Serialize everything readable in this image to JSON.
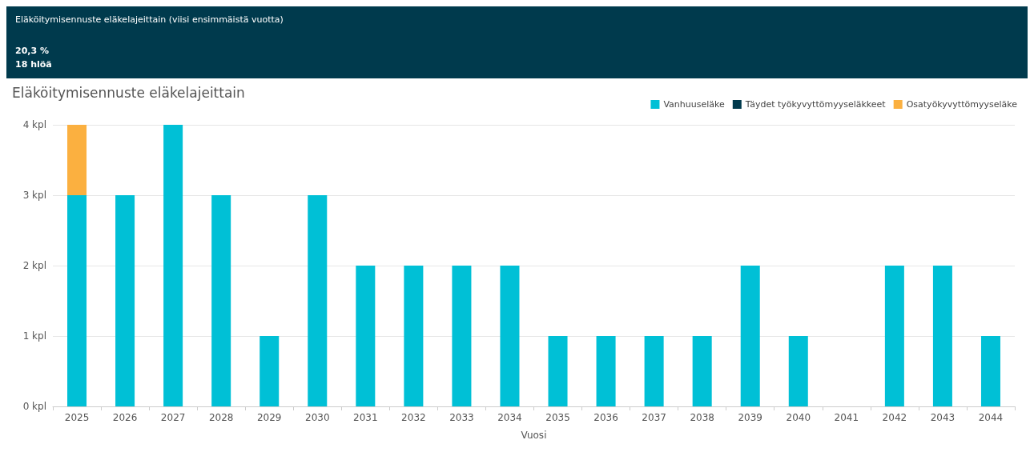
{
  "chart_data": [
    {
      "type": "other",
      "title": "Eläköitymisennuste eläkelajeittain (viisi ensimmäistä vuotta)",
      "annotations": [
        "20,3 %",
        "18 hlöä"
      ]
    },
    {
      "type": "bar",
      "title": "Eläköitymisennuste eläkelajeittain",
      "xlabel": "Vuosi",
      "stacked": true,
      "grid": "y",
      "legend": "top right",
      "categories": [
        "2025",
        "2026",
        "2027",
        "2028",
        "2029",
        "2030",
        "2031",
        "2032",
        "2033",
        "2034",
        "2035",
        "2036",
        "2037",
        "2038",
        "2039",
        "2040",
        "2041",
        "2042",
        "2043",
        "2044"
      ],
      "series": [
        {
          "name": "Vanhuuseläke",
          "color": "#00c0d6",
          "values": [
            3,
            3,
            4,
            3,
            1,
            3,
            2,
            2,
            2,
            2,
            1,
            1,
            1,
            1,
            2,
            1,
            0,
            2,
            2,
            1
          ]
        },
        {
          "name": "Täydet työkyvyttömyyseläkkeet",
          "color": "#003a4d",
          "values": [
            0,
            0,
            0,
            0,
            0,
            0,
            0,
            0,
            0,
            0,
            0,
            0,
            0,
            0,
            0,
            0,
            0,
            0,
            0,
            0
          ]
        },
        {
          "name": "Osatyökyvyttömyyseläke",
          "color": "#fbb040",
          "values": [
            1,
            0,
            0,
            0,
            0,
            0,
            0,
            0,
            0,
            0,
            0,
            0,
            0,
            0,
            0,
            0,
            0,
            0,
            0,
            0
          ]
        }
      ],
      "ylim": [
        0,
        4
      ],
      "yticks": [
        {
          "value": 0,
          "label": "0 kpl"
        },
        {
          "value": 1,
          "label": "1 kpl"
        },
        {
          "value": 2,
          "label": "2 kpl"
        },
        {
          "value": 3,
          "label": "3 kpl"
        },
        {
          "value": 4,
          "label": "4 kpl"
        }
      ]
    }
  ]
}
